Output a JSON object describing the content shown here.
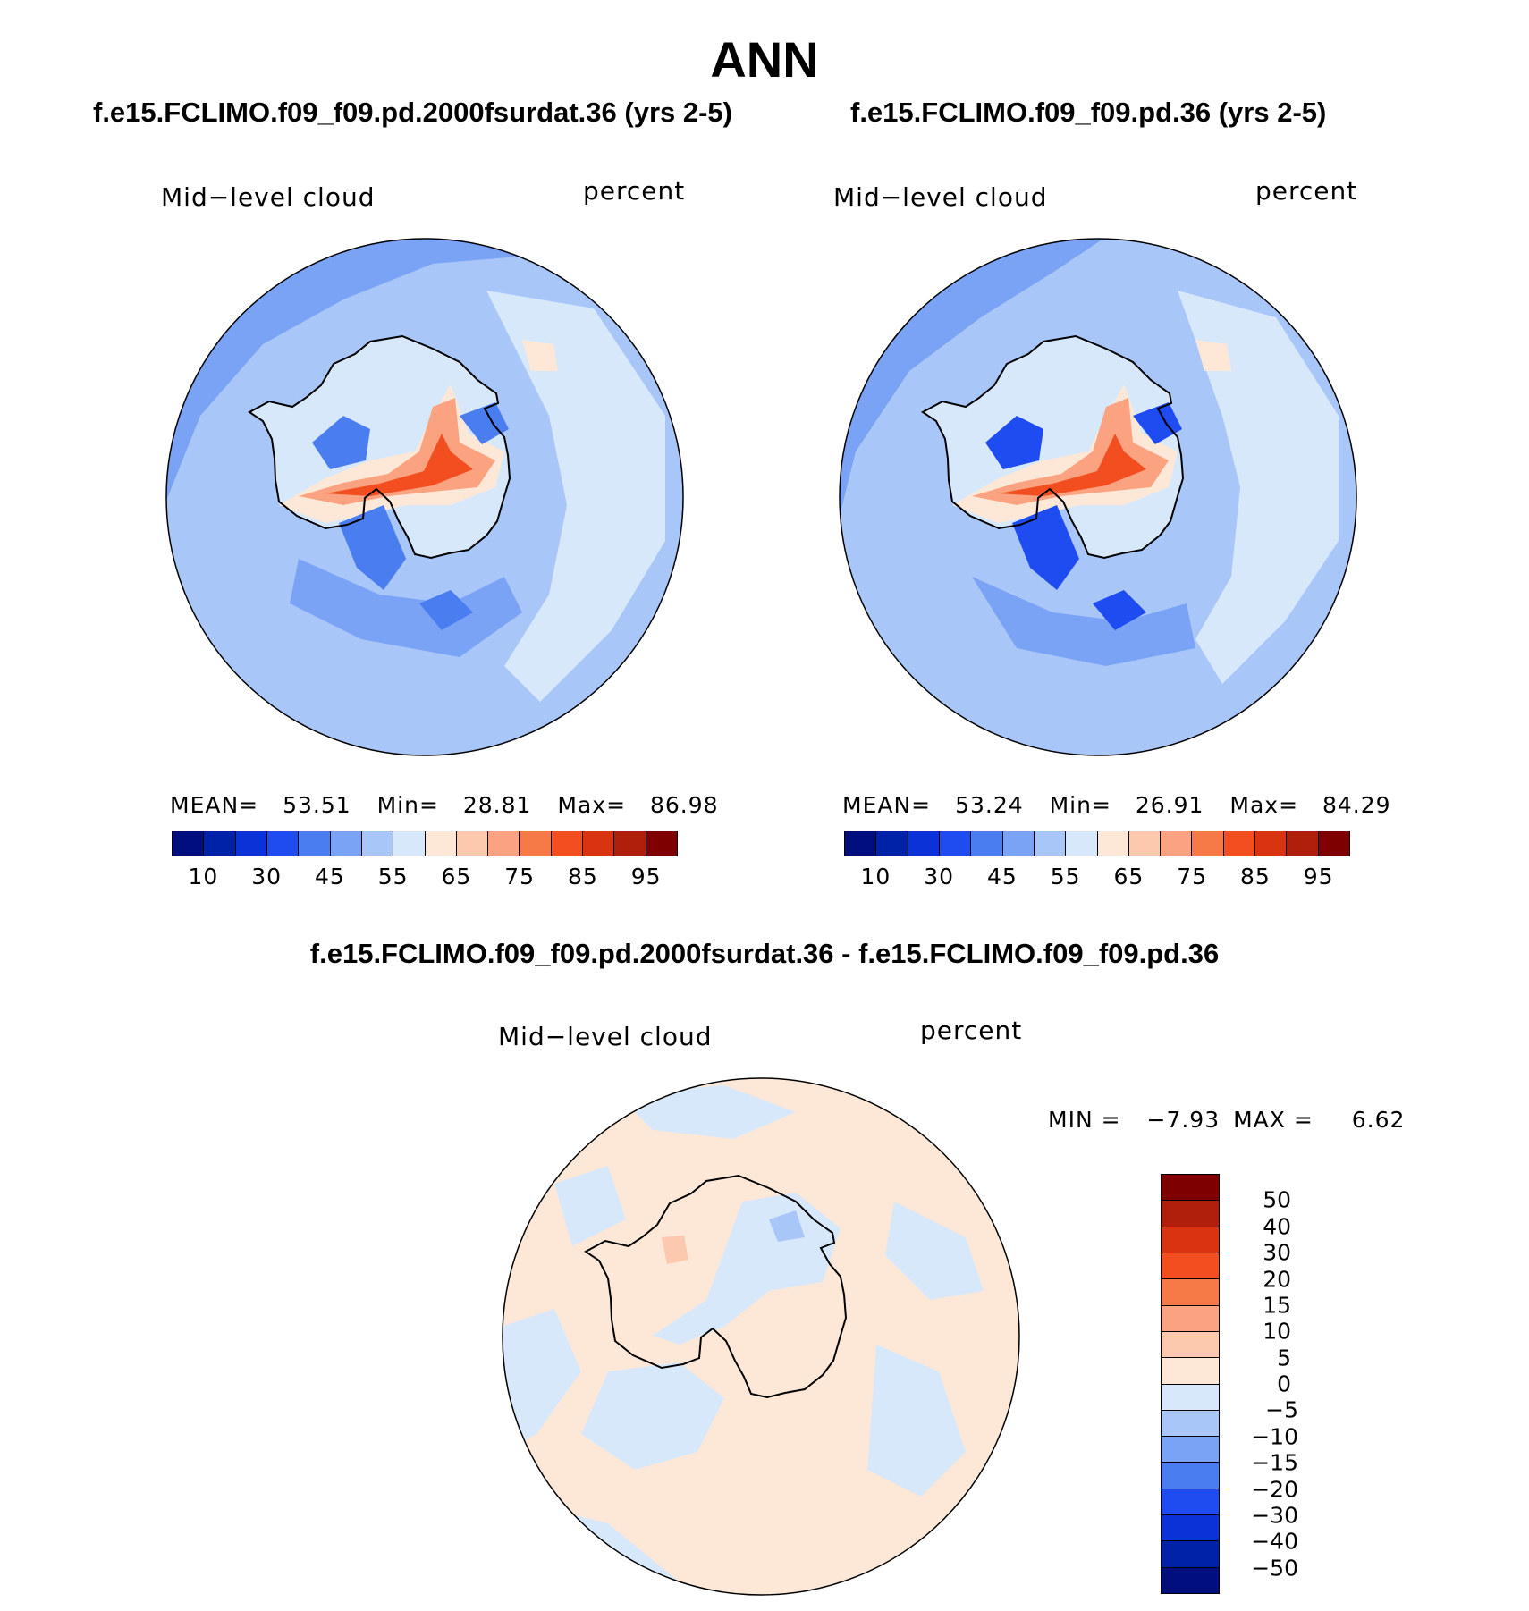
{
  "main_title": "ANN",
  "panels": [
    {
      "case_title": "f.e15.FCLIMO.f09_f09.pd.2000fsurdat.36 (yrs 2-5)",
      "variable": "Mid−level cloud",
      "units": "percent",
      "stats": {
        "mean_label": "MEAN=",
        "mean": "53.51",
        "min_label": "Min=",
        "min": "28.81",
        "max_label": "Max=",
        "max": "86.98"
      }
    },
    {
      "case_title": "f.e15.FCLIMO.f09_f09.pd.36 (yrs 2-5)",
      "variable": "Mid−level cloud",
      "units": "percent",
      "stats": {
        "mean_label": "MEAN=",
        "mean": "53.24",
        "min_label": "Min=",
        "min": "26.91",
        "max_label": "Max=",
        "max": "84.29"
      }
    }
  ],
  "diff_panel": {
    "title": "f.e15.FCLIMO.f09_f09.pd.2000fsurdat.36 - f.e15.FCLIMO.f09_f09.pd.36",
    "variable": "Mid−level cloud",
    "units": "percent",
    "min_label": "MIN =",
    "min": "−7.93",
    "max_label": "MAX =",
    "max": "6.62"
  },
  "colorbar_abs": {
    "colors": [
      "#000e7e",
      "#0022a8",
      "#0a32d6",
      "#1e4cf0",
      "#4a7df0",
      "#7aa2f5",
      "#a8c6f8",
      "#d8e8fb",
      "#fde8d8",
      "#fcc8ae",
      "#fba380",
      "#f57a48",
      "#f24e20",
      "#d93412",
      "#b01e0c",
      "#7e0000"
    ],
    "labels": [
      "10",
      "30",
      "45",
      "55",
      "65",
      "75",
      "85",
      "95"
    ]
  },
  "colorbar_diff": {
    "colors": [
      "#7e0000",
      "#b01e0c",
      "#d93412",
      "#f24e20",
      "#f57a48",
      "#fba380",
      "#fcc8ae",
      "#fde8d8",
      "#d8e8fb",
      "#a8c6f8",
      "#7aa2f5",
      "#4a7df0",
      "#1e4cf0",
      "#0a32d6",
      "#0022a8",
      "#000e7e"
    ],
    "labels": [
      "50",
      "40",
      "30",
      "20",
      "15",
      "10",
      "5",
      "0",
      "−5",
      "−10",
      "−15",
      "−20",
      "−30",
      "−40",
      "−50"
    ]
  }
}
